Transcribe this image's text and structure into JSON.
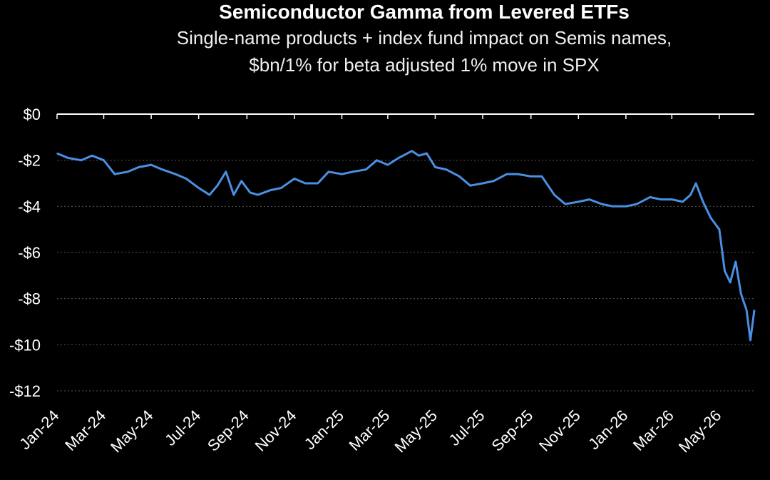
{
  "colors": {
    "background": "#000000",
    "series": "#4a90e2",
    "text": "#ffffff",
    "axis": "#ffffff",
    "grid": "#555555"
  },
  "chart_data": {
    "type": "line",
    "title": "Semiconductor Gamma  from Levered ETFs",
    "subtitle_line1": "Single-name products + index fund impact on Semis names,",
    "subtitle_line2": "$bn/1% for beta adjusted 1% move in SPX",
    "xlabel": "",
    "ylabel": "",
    "ylim": [
      -12,
      0
    ],
    "yticks": [
      0,
      -2,
      -4,
      -6,
      -8,
      -10,
      -12
    ],
    "ytick_labels": [
      "$0",
      "-$2",
      "-$4",
      "-$6",
      "-$8",
      "-$10",
      "-$12"
    ],
    "xtick_labels": [
      "Jan-24",
      "Mar-24",
      "May-24",
      "Jul-24",
      "Sep-24",
      "Nov-24",
      "Jan-25",
      "Mar-25",
      "May-25",
      "Jul-25",
      "Sep-25",
      "Nov-25",
      "Jan-26",
      "Mar-26",
      "May-26"
    ],
    "xlim": [
      "2024-01-01",
      "2026-06-15"
    ],
    "grid": "horizontal dotted",
    "series": [
      {
        "x": [
          "2024-01-01",
          "2024-01-15",
          "2024-02-01",
          "2024-02-15",
          "2024-03-01",
          "2024-03-15",
          "2024-04-01",
          "2024-04-15",
          "2024-05-01",
          "2024-05-15",
          "2024-06-01",
          "2024-06-15",
          "2024-07-01",
          "2024-07-15",
          "2024-07-25",
          "2024-08-05",
          "2024-08-15",
          "2024-08-25",
          "2024-09-05",
          "2024-09-15",
          "2024-10-01",
          "2024-10-15",
          "2024-11-01",
          "2024-11-15",
          "2024-12-01",
          "2024-12-15",
          "2025-01-01",
          "2025-01-15",
          "2025-02-01",
          "2025-02-15",
          "2025-03-01",
          "2025-03-15",
          "2025-04-01",
          "2025-04-10",
          "2025-04-20",
          "2025-05-01",
          "2025-05-15",
          "2025-06-01",
          "2025-06-15",
          "2025-07-01",
          "2025-07-15",
          "2025-08-01",
          "2025-08-15",
          "2025-09-01",
          "2025-09-15",
          "2025-10-01",
          "2025-10-15",
          "2025-11-01",
          "2025-11-15",
          "2025-12-01",
          "2025-12-15",
          "2026-01-01",
          "2026-01-15",
          "2026-02-01",
          "2026-02-15",
          "2026-03-01",
          "2026-03-15",
          "2026-03-25",
          "2026-04-01",
          "2026-04-10",
          "2026-04-20",
          "2026-05-01",
          "2026-05-08",
          "2026-05-15",
          "2026-05-22",
          "2026-05-29",
          "2026-06-05",
          "2026-06-10",
          "2026-06-15"
        ],
        "values": [
          -1.7,
          -1.9,
          -2.0,
          -1.8,
          -2.0,
          -2.6,
          -2.5,
          -2.3,
          -2.2,
          -2.4,
          -2.6,
          -2.8,
          -3.2,
          -3.5,
          -3.1,
          -2.5,
          -3.5,
          -2.9,
          -3.4,
          -3.5,
          -3.3,
          -3.2,
          -2.8,
          -3.0,
          -3.0,
          -2.5,
          -2.6,
          -2.5,
          -2.4,
          -2.0,
          -2.2,
          -1.9,
          -1.6,
          -1.8,
          -1.7,
          -2.3,
          -2.4,
          -2.7,
          -3.1,
          -3.0,
          -2.9,
          -2.6,
          -2.6,
          -2.7,
          -2.7,
          -3.5,
          -3.9,
          -3.8,
          -3.7,
          -3.9,
          -4.0,
          -4.0,
          -3.9,
          -3.6,
          -3.7,
          -3.7,
          -3.8,
          -3.5,
          -3.0,
          -3.8,
          -4.5,
          -5.0,
          -6.8,
          -7.3,
          -6.4,
          -7.8,
          -8.5,
          -9.8,
          -8.5
        ]
      }
    ]
  }
}
